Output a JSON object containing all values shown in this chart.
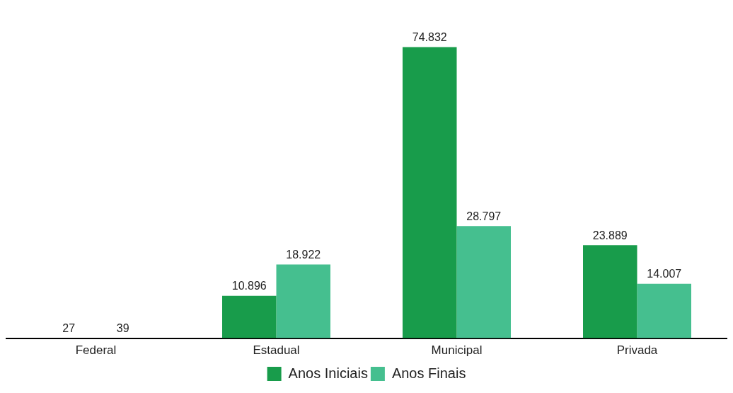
{
  "chart_data": {
    "type": "bar",
    "categories": [
      "Federal",
      "Estadual",
      "Municipal",
      "Privada"
    ],
    "series": [
      {
        "name": "Anos Iniciais",
        "color": "#189c4b",
        "values": [
          27,
          10896,
          74832,
          23889
        ],
        "value_labels": [
          "27",
          "10.896",
          "74.832",
          "23.889"
        ]
      },
      {
        "name": "Anos Finais",
        "color": "#45bf8f",
        "values": [
          39,
          18922,
          28797,
          14007
        ],
        "value_labels": [
          "39",
          "18.922",
          "28.797",
          "14.007"
        ]
      }
    ],
    "legend": "bottom"
  }
}
